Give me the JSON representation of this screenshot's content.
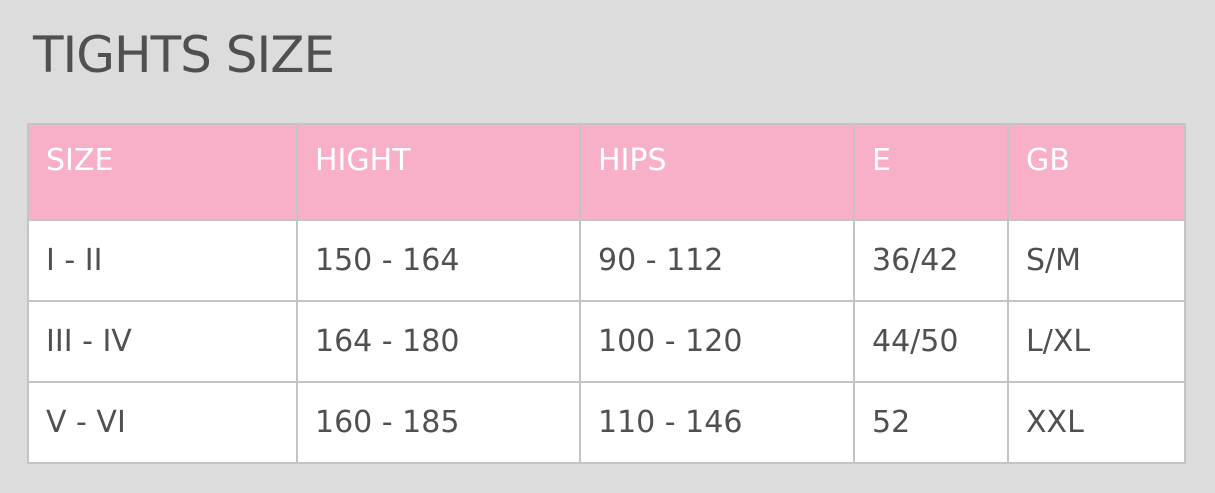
{
  "title": "TIGHTS SIZE",
  "headers": [
    "SIZE",
    "HIGHT",
    "HIPS",
    "E",
    "GB"
  ],
  "rows": [
    [
      "I - II",
      "150 - 164",
      "90 - 112",
      "36/42",
      "S/M"
    ],
    [
      "III - IV",
      "164 - 180",
      "100 - 120",
      "44/50",
      "L/XL"
    ],
    [
      "V - VI",
      "160 - 185",
      "110 - 146",
      "52",
      "XXL"
    ]
  ],
  "colors": {
    "header": "#f8b0c9",
    "background": "#dcdcdc"
  }
}
